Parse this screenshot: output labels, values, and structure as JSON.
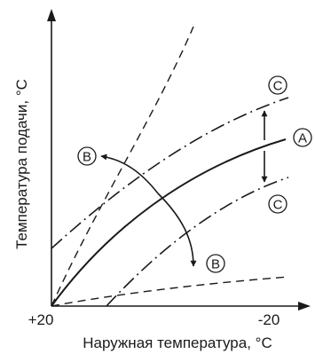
{
  "axes": {
    "y_label": "Температура подачи, °C",
    "x_label": "Наружная температура, °C",
    "x_tick_left": "+20",
    "x_tick_right": "-20"
  },
  "markers": {
    "a": "A",
    "b": "B",
    "c": "C"
  }
}
